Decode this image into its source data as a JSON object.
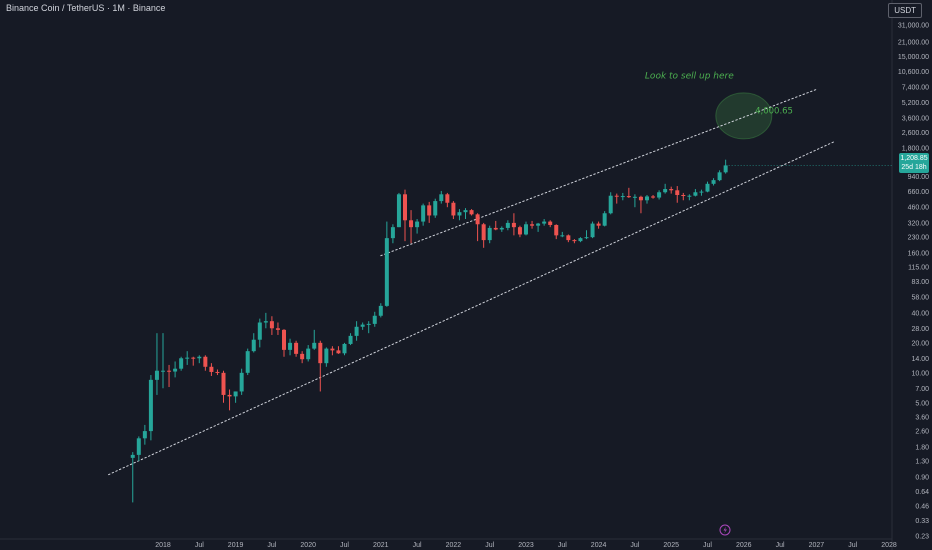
{
  "header": {
    "title": "Binance Coin / TetherUS · 1M · Binance",
    "currency": "USDT"
  },
  "price_badge": {
    "price": "1,208.85",
    "countdown": "25d 18h"
  },
  "colors": {
    "up": "#26a69a",
    "down": "#ef5350",
    "annotation": "#4caf50",
    "trendline": "#d1d4dc"
  },
  "chart_data": {
    "type": "candlestick",
    "title": "Binance Coin / TetherUS · 1M · Binance",
    "y_scale": "log",
    "ylim": [
      0.23,
      46000
    ],
    "y_ticks": [
      {
        "v": 31000,
        "label": "31,000.00"
      },
      {
        "v": 21000,
        "label": "21,000.00"
      },
      {
        "v": 15000,
        "label": "15,000.00"
      },
      {
        "v": 10600,
        "label": "10,600.00"
      },
      {
        "v": 7400,
        "label": "7,400.00"
      },
      {
        "v": 5200,
        "label": "5,200.00"
      },
      {
        "v": 3600,
        "label": "3,600.00"
      },
      {
        "v": 2600,
        "label": "2,600.00"
      },
      {
        "v": 1800,
        "label": "1,800.00"
      },
      {
        "v": 940,
        "label": "940.00"
      },
      {
        "v": 660,
        "label": "660.00"
      },
      {
        "v": 460,
        "label": "460.00"
      },
      {
        "v": 320,
        "label": "320.00"
      },
      {
        "v": 230,
        "label": "230.00"
      },
      {
        "v": 160,
        "label": "160.00"
      },
      {
        "v": 115,
        "label": "115.00"
      },
      {
        "v": 83,
        "label": "83.00"
      },
      {
        "v": 58,
        "label": "58.00"
      },
      {
        "v": 40,
        "label": "40.00"
      },
      {
        "v": 28,
        "label": "28.00"
      },
      {
        "v": 20,
        "label": "20.00"
      },
      {
        "v": 14,
        "label": "14.00"
      },
      {
        "v": 10,
        "label": "10.00"
      },
      {
        "v": 7,
        "label": "7.00"
      },
      {
        "v": 5,
        "label": "5.00"
      },
      {
        "v": 3.6,
        "label": "3.60"
      },
      {
        "v": 2.6,
        "label": "2.60"
      },
      {
        "v": 1.8,
        "label": "1.80"
      },
      {
        "v": 1.3,
        "label": "1.30"
      },
      {
        "v": 0.9,
        "label": "0.90"
      },
      {
        "v": 0.64,
        "label": "0.64"
      },
      {
        "v": 0.46,
        "label": "0.46"
      },
      {
        "v": 0.33,
        "label": "0.33"
      },
      {
        "v": 0.23,
        "label": "0.23"
      }
    ],
    "x_ticks": [
      {
        "date": "2018-01",
        "label": "2018"
      },
      {
        "date": "2018-07",
        "label": "Jul"
      },
      {
        "date": "2019-01",
        "label": "2019"
      },
      {
        "date": "2019-07",
        "label": "Jul"
      },
      {
        "date": "2020-01",
        "label": "2020"
      },
      {
        "date": "2020-07",
        "label": "Jul"
      },
      {
        "date": "2021-01",
        "label": "2021"
      },
      {
        "date": "2021-07",
        "label": "Jul"
      },
      {
        "date": "2022-01",
        "label": "2022"
      },
      {
        "date": "2022-07",
        "label": "Jul"
      },
      {
        "date": "2023-01",
        "label": "2023"
      },
      {
        "date": "2023-07",
        "label": "Jul"
      },
      {
        "date": "2024-01",
        "label": "2024"
      },
      {
        "date": "2024-07",
        "label": "Jul"
      },
      {
        "date": "2025-01",
        "label": "2025"
      },
      {
        "date": "2025-07",
        "label": "Jul"
      },
      {
        "date": "2026-01",
        "label": "2026"
      },
      {
        "date": "2026-07",
        "label": "Jul"
      },
      {
        "date": "2027-01",
        "label": "2027"
      },
      {
        "date": "2027-07",
        "label": "Jul"
      },
      {
        "date": "2028-01",
        "label": "2028"
      }
    ],
    "candles": [
      {
        "d": "2017-08",
        "o": 1.4,
        "h": 1.6,
        "l": 0.5,
        "c": 1.5
      },
      {
        "d": "2017-09",
        "o": 1.5,
        "h": 2.3,
        "l": 1.3,
        "c": 2.2
      },
      {
        "d": "2017-10",
        "o": 2.2,
        "h": 3.0,
        "l": 1.9,
        "c": 2.6
      },
      {
        "d": "2017-11",
        "o": 2.6,
        "h": 9.5,
        "l": 2.1,
        "c": 8.5
      },
      {
        "d": "2017-12",
        "o": 8.5,
        "h": 25,
        "l": 6.0,
        "c": 10.5
      },
      {
        "d": "2018-01",
        "o": 10.5,
        "h": 25,
        "l": 7.0,
        "c": 10.5
      },
      {
        "d": "2018-02",
        "o": 10.5,
        "h": 12,
        "l": 7.2,
        "c": 10.3
      },
      {
        "d": "2018-03",
        "o": 10.3,
        "h": 13,
        "l": 9.0,
        "c": 11.0
      },
      {
        "d": "2018-04",
        "o": 11.0,
        "h": 14.5,
        "l": 10.5,
        "c": 14.0
      },
      {
        "d": "2018-05",
        "o": 14.0,
        "h": 16.5,
        "l": 12.0,
        "c": 14.2
      },
      {
        "d": "2018-06",
        "o": 14.2,
        "h": 14.5,
        "l": 11.8,
        "c": 14.0
      },
      {
        "d": "2018-07",
        "o": 14.0,
        "h": 15.0,
        "l": 12.5,
        "c": 14.5
      },
      {
        "d": "2018-08",
        "o": 14.5,
        "h": 15.0,
        "l": 10.5,
        "c": 11.5
      },
      {
        "d": "2018-09",
        "o": 11.5,
        "h": 12.5,
        "l": 9.3,
        "c": 10.2
      },
      {
        "d": "2018-10",
        "o": 10.2,
        "h": 10.8,
        "l": 9.5,
        "c": 10.0
      },
      {
        "d": "2018-11",
        "o": 10.0,
        "h": 10.5,
        "l": 5.0,
        "c": 6.0
      },
      {
        "d": "2018-12",
        "o": 6.0,
        "h": 6.8,
        "l": 4.2,
        "c": 5.8
      },
      {
        "d": "2019-01",
        "o": 5.8,
        "h": 6.5,
        "l": 5.0,
        "c": 6.5
      },
      {
        "d": "2019-02",
        "o": 6.5,
        "h": 11.0,
        "l": 6.0,
        "c": 10.0
      },
      {
        "d": "2019-03",
        "o": 10.0,
        "h": 17.5,
        "l": 9.5,
        "c": 16.5
      },
      {
        "d": "2019-04",
        "o": 16.5,
        "h": 25,
        "l": 16.0,
        "c": 21.5
      },
      {
        "d": "2019-05",
        "o": 21.5,
        "h": 35,
        "l": 18.0,
        "c": 32.0
      },
      {
        "d": "2019-06",
        "o": 32.0,
        "h": 40,
        "l": 28.0,
        "c": 33.0
      },
      {
        "d": "2019-07",
        "o": 33.0,
        "h": 37,
        "l": 24.0,
        "c": 28.0
      },
      {
        "d": "2019-08",
        "o": 28.0,
        "h": 32,
        "l": 24.0,
        "c": 27.0
      },
      {
        "d": "2019-09",
        "o": 27.0,
        "h": 27.5,
        "l": 14.5,
        "c": 17.0
      },
      {
        "d": "2019-10",
        "o": 17.0,
        "h": 22,
        "l": 15.0,
        "c": 20.0
      },
      {
        "d": "2019-11",
        "o": 20.0,
        "h": 21,
        "l": 14.5,
        "c": 15.5
      },
      {
        "d": "2019-12",
        "o": 15.5,
        "h": 16.5,
        "l": 12.5,
        "c": 13.7
      },
      {
        "d": "2020-01",
        "o": 13.7,
        "h": 19,
        "l": 13.0,
        "c": 17.5
      },
      {
        "d": "2020-02",
        "o": 17.5,
        "h": 27,
        "l": 17.0,
        "c": 20.0
      },
      {
        "d": "2020-03",
        "o": 20.0,
        "h": 21,
        "l": 6.5,
        "c": 12.5
      },
      {
        "d": "2020-04",
        "o": 12.5,
        "h": 18,
        "l": 11.5,
        "c": 17.5
      },
      {
        "d": "2020-05",
        "o": 17.5,
        "h": 18.5,
        "l": 15.0,
        "c": 16.8
      },
      {
        "d": "2020-06",
        "o": 16.8,
        "h": 18.5,
        "l": 15.5,
        "c": 15.7
      },
      {
        "d": "2020-07",
        "o": 15.7,
        "h": 20,
        "l": 15.0,
        "c": 19.5
      },
      {
        "d": "2020-08",
        "o": 19.5,
        "h": 25,
        "l": 19.0,
        "c": 23.5
      },
      {
        "d": "2020-09",
        "o": 23.5,
        "h": 33,
        "l": 21.0,
        "c": 29.0
      },
      {
        "d": "2020-10",
        "o": 29.0,
        "h": 32,
        "l": 27.0,
        "c": 30.5
      },
      {
        "d": "2020-11",
        "o": 30.5,
        "h": 33,
        "l": 25.0,
        "c": 31.0
      },
      {
        "d": "2020-12",
        "o": 31.0,
        "h": 41,
        "l": 29.0,
        "c": 37.4
      },
      {
        "d": "2021-01",
        "o": 37.4,
        "h": 50,
        "l": 36.0,
        "c": 47.0
      },
      {
        "d": "2021-02",
        "o": 47.0,
        "h": 330,
        "l": 46.0,
        "c": 225
      },
      {
        "d": "2021-03",
        "o": 225,
        "h": 310,
        "l": 200,
        "c": 290
      },
      {
        "d": "2021-04",
        "o": 290,
        "h": 640,
        "l": 290,
        "c": 620
      },
      {
        "d": "2021-05",
        "o": 620,
        "h": 690,
        "l": 210,
        "c": 340
      },
      {
        "d": "2021-06",
        "o": 340,
        "h": 430,
        "l": 200,
        "c": 290
      },
      {
        "d": "2021-07",
        "o": 290,
        "h": 350,
        "l": 250,
        "c": 330
      },
      {
        "d": "2021-08",
        "o": 330,
        "h": 500,
        "l": 300,
        "c": 480
      },
      {
        "d": "2021-09",
        "o": 480,
        "h": 520,
        "l": 320,
        "c": 380
      },
      {
        "d": "2021-10",
        "o": 380,
        "h": 560,
        "l": 360,
        "c": 530
      },
      {
        "d": "2021-11",
        "o": 530,
        "h": 670,
        "l": 500,
        "c": 620
      },
      {
        "d": "2021-12",
        "o": 620,
        "h": 640,
        "l": 460,
        "c": 510
      },
      {
        "d": "2022-01",
        "o": 510,
        "h": 530,
        "l": 350,
        "c": 380
      },
      {
        "d": "2022-02",
        "o": 380,
        "h": 440,
        "l": 340,
        "c": 410
      },
      {
        "d": "2022-03",
        "o": 410,
        "h": 450,
        "l": 350,
        "c": 430
      },
      {
        "d": "2022-04",
        "o": 430,
        "h": 440,
        "l": 380,
        "c": 390
      },
      {
        "d": "2022-05",
        "o": 390,
        "h": 400,
        "l": 210,
        "c": 310
      },
      {
        "d": "2022-06",
        "o": 310,
        "h": 320,
        "l": 180,
        "c": 215
      },
      {
        "d": "2022-07",
        "o": 215,
        "h": 300,
        "l": 200,
        "c": 285
      },
      {
        "d": "2022-08",
        "o": 285,
        "h": 335,
        "l": 270,
        "c": 275
      },
      {
        "d": "2022-09",
        "o": 275,
        "h": 295,
        "l": 260,
        "c": 285
      },
      {
        "d": "2022-10",
        "o": 285,
        "h": 340,
        "l": 270,
        "c": 320
      },
      {
        "d": "2022-11",
        "o": 320,
        "h": 400,
        "l": 240,
        "c": 290
      },
      {
        "d": "2022-12",
        "o": 290,
        "h": 300,
        "l": 230,
        "c": 245
      },
      {
        "d": "2023-01",
        "o": 245,
        "h": 330,
        "l": 240,
        "c": 310
      },
      {
        "d": "2023-02",
        "o": 310,
        "h": 335,
        "l": 280,
        "c": 300
      },
      {
        "d": "2023-03",
        "o": 300,
        "h": 320,
        "l": 260,
        "c": 315
      },
      {
        "d": "2023-04",
        "o": 315,
        "h": 350,
        "l": 300,
        "c": 330
      },
      {
        "d": "2023-05",
        "o": 330,
        "h": 340,
        "l": 290,
        "c": 305
      },
      {
        "d": "2023-06",
        "o": 305,
        "h": 310,
        "l": 220,
        "c": 240
      },
      {
        "d": "2023-07",
        "o": 240,
        "h": 260,
        "l": 230,
        "c": 240
      },
      {
        "d": "2023-08",
        "o": 240,
        "h": 245,
        "l": 205,
        "c": 215
      },
      {
        "d": "2023-09",
        "o": 215,
        "h": 220,
        "l": 200,
        "c": 210
      },
      {
        "d": "2023-10",
        "o": 210,
        "h": 230,
        "l": 205,
        "c": 225
      },
      {
        "d": "2023-11",
        "o": 225,
        "h": 270,
        "l": 220,
        "c": 230
      },
      {
        "d": "2023-12",
        "o": 230,
        "h": 330,
        "l": 225,
        "c": 315
      },
      {
        "d": "2024-01",
        "o": 315,
        "h": 330,
        "l": 280,
        "c": 300
      },
      {
        "d": "2024-02",
        "o": 300,
        "h": 420,
        "l": 295,
        "c": 400
      },
      {
        "d": "2024-03",
        "o": 400,
        "h": 650,
        "l": 390,
        "c": 600
      },
      {
        "d": "2024-04",
        "o": 600,
        "h": 630,
        "l": 500,
        "c": 590
      },
      {
        "d": "2024-05",
        "o": 590,
        "h": 640,
        "l": 540,
        "c": 595
      },
      {
        "d": "2024-06",
        "o": 595,
        "h": 720,
        "l": 570,
        "c": 580
      },
      {
        "d": "2024-07",
        "o": 580,
        "h": 620,
        "l": 460,
        "c": 585
      },
      {
        "d": "2024-08",
        "o": 585,
        "h": 600,
        "l": 400,
        "c": 540
      },
      {
        "d": "2024-09",
        "o": 540,
        "h": 610,
        "l": 500,
        "c": 590
      },
      {
        "d": "2024-10",
        "o": 590,
        "h": 610,
        "l": 560,
        "c": 575
      },
      {
        "d": "2024-11",
        "o": 575,
        "h": 680,
        "l": 550,
        "c": 650
      },
      {
        "d": "2024-12",
        "o": 650,
        "h": 790,
        "l": 630,
        "c": 700
      },
      {
        "d": "2025-01",
        "o": 700,
        "h": 740,
        "l": 630,
        "c": 680
      },
      {
        "d": "2025-02",
        "o": 680,
        "h": 750,
        "l": 510,
        "c": 610
      },
      {
        "d": "2025-03",
        "o": 610,
        "h": 640,
        "l": 540,
        "c": 600
      },
      {
        "d": "2025-04",
        "o": 600,
        "h": 620,
        "l": 540,
        "c": 600
      },
      {
        "d": "2025-05",
        "o": 600,
        "h": 700,
        "l": 590,
        "c": 650
      },
      {
        "d": "2025-06",
        "o": 650,
        "h": 690,
        "l": 600,
        "c": 660
      },
      {
        "d": "2025-07",
        "o": 660,
        "h": 830,
        "l": 650,
        "c": 790
      },
      {
        "d": "2025-08",
        "o": 790,
        "h": 900,
        "l": 760,
        "c": 860
      },
      {
        "d": "2025-09",
        "o": 860,
        "h": 1080,
        "l": 840,
        "c": 1030
      },
      {
        "d": "2025-10",
        "o": 1030,
        "h": 1380,
        "l": 1000,
        "c": 1209
      }
    ],
    "trendlines": [
      {
        "name": "upper",
        "from": {
          "d": "2021-01",
          "v": 150
        },
        "to": {
          "d": "2027-01",
          "v": 7000
        }
      },
      {
        "name": "lower",
        "from": {
          "d": "2017-04",
          "v": 0.95
        },
        "to": {
          "d": "2027-04",
          "v": 2100
        }
      }
    ],
    "annotations": [
      {
        "text": "Look to sell up here",
        "at": {
          "d": "2025-04",
          "v": 9000
        }
      },
      {
        "text": "4,000.65",
        "at": {
          "d": "2026-06",
          "v": 4000
        }
      }
    ],
    "target_zone": {
      "center": {
        "d": "2026-01",
        "v": 3800
      },
      "label": "4,000.65"
    },
    "grid": false
  }
}
